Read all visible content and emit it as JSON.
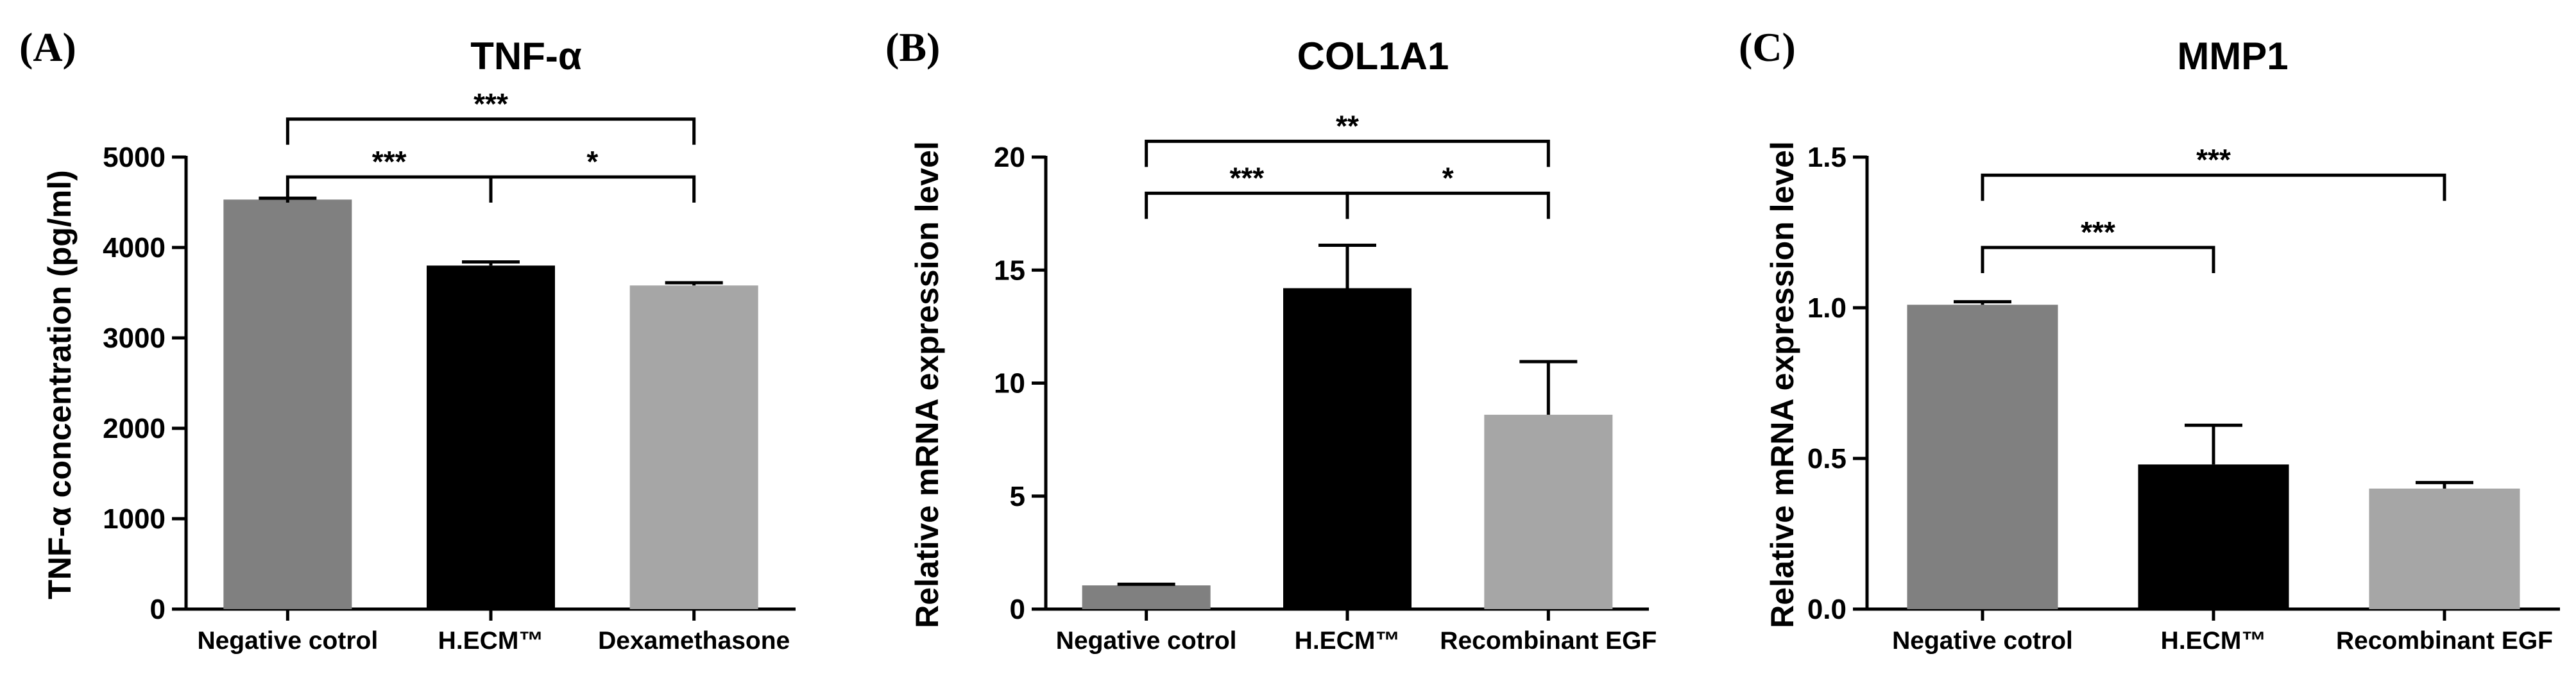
{
  "chart_data": [
    {
      "panel_label": "(A)",
      "type": "bar",
      "title": "TNF-α",
      "xlabel": "",
      "ylabel": "TNF-α concentration (pg/ml)",
      "categories": [
        "Negative cotrol",
        "H.ECM™",
        "Dexamethasone"
      ],
      "values": [
        4530,
        3800,
        3580
      ],
      "errors": [
        15,
        40,
        30
      ],
      "colors": [
        "#808080",
        "#000000",
        "#a6a6a6"
      ],
      "ylim": [
        0,
        5000
      ],
      "yticks": [
        0,
        1000,
        2000,
        3000,
        4000,
        5000
      ],
      "ytick_labels": [
        "0",
        "1000",
        "2000",
        "3000",
        "4000",
        "5000"
      ],
      "grid": false,
      "significance": [
        {
          "from": 0,
          "to": 1,
          "label": "***",
          "level": 4780
        },
        {
          "from": 1,
          "to": 2,
          "label": "*",
          "level": 4780
        },
        {
          "from": 0,
          "to": 2,
          "label": "***",
          "level": 5420
        }
      ]
    },
    {
      "panel_label": "(B)",
      "type": "bar",
      "title": "COL1A1",
      "xlabel": "",
      "ylabel": "Relative mRNA expression level",
      "categories": [
        "Negative cotrol",
        "H.ECM™",
        "Recombinant EGF"
      ],
      "values": [
        1.05,
        14.2,
        8.6
      ],
      "errors": [
        0.05,
        1.9,
        2.35
      ],
      "colors": [
        "#808080",
        "#000000",
        "#a6a6a6"
      ],
      "ylim": [
        0,
        20
      ],
      "yticks": [
        0,
        5,
        10,
        15,
        20
      ],
      "ytick_labels": [
        "0",
        "5",
        "10",
        "15",
        "20"
      ],
      "grid": false,
      "significance": [
        {
          "from": 0,
          "to": 1,
          "label": "***",
          "level": 18.4
        },
        {
          "from": 1,
          "to": 2,
          "label": "*",
          "level": 18.4
        },
        {
          "from": 0,
          "to": 2,
          "label": "**",
          "level": 20.7
        }
      ]
    },
    {
      "panel_label": "(C)",
      "type": "bar",
      "title": "MMP1",
      "xlabel": "",
      "ylabel": "Relative mRNA expression level",
      "categories": [
        "Negative cotrol",
        "H.ECM™",
        "Recombinant EGF"
      ],
      "values": [
        1.01,
        0.48,
        0.4
      ],
      "errors": [
        0.01,
        0.13,
        0.02
      ],
      "colors": [
        "#808080",
        "#000000",
        "#a6a6a6"
      ],
      "ylim": [
        0,
        1.5
      ],
      "yticks": [
        0,
        0.5,
        1.0,
        1.5
      ],
      "ytick_labels": [
        "0.0",
        "0.5",
        "1.0",
        "1.5"
      ],
      "grid": false,
      "significance": [
        {
          "from": 0,
          "to": 1,
          "label": "***",
          "level": 1.2
        },
        {
          "from": 0,
          "to": 2,
          "label": "***",
          "level": 1.44
        }
      ]
    }
  ]
}
